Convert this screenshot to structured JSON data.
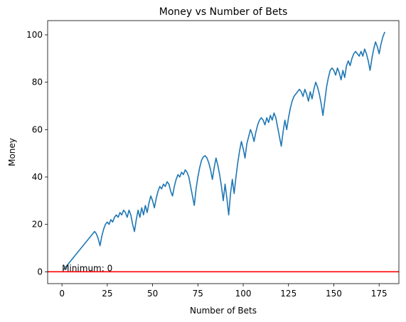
{
  "chart_data": {
    "type": "line",
    "title": "Money vs Number of Bets",
    "xlabel": "Number of Bets",
    "ylabel": "Money",
    "xlim": [
      -7.9,
      185.9
    ],
    "ylim": [
      -5.0,
      106.0
    ],
    "xticks": [
      0,
      25,
      50,
      75,
      100,
      125,
      150,
      175
    ],
    "yticks": [
      0,
      20,
      40,
      60,
      80,
      100
    ],
    "grid": false,
    "legend": "none",
    "series": [
      {
        "color": "#1f77b4",
        "points": [
          [
            1,
            1
          ],
          [
            18,
            17
          ],
          [
            19,
            16
          ],
          [
            20,
            14
          ],
          [
            21,
            11
          ],
          [
            22,
            15
          ],
          [
            23,
            18
          ],
          [
            24,
            20
          ],
          [
            25,
            21
          ],
          [
            26,
            20
          ],
          [
            27,
            22
          ],
          [
            28,
            21
          ],
          [
            29,
            23
          ],
          [
            30,
            24
          ],
          [
            31,
            23
          ],
          [
            32,
            25
          ],
          [
            33,
            24
          ],
          [
            34,
            26
          ],
          [
            35,
            25
          ],
          [
            36,
            23
          ],
          [
            37,
            26
          ],
          [
            38,
            24
          ],
          [
            39,
            20
          ],
          [
            40,
            17
          ],
          [
            41,
            22
          ],
          [
            42,
            26
          ],
          [
            43,
            23
          ],
          [
            44,
            27
          ],
          [
            45,
            24
          ],
          [
            46,
            28
          ],
          [
            47,
            25
          ],
          [
            48,
            29
          ],
          [
            49,
            32
          ],
          [
            50,
            30
          ],
          [
            51,
            27
          ],
          [
            52,
            31
          ],
          [
            53,
            34
          ],
          [
            54,
            36
          ],
          [
            55,
            35
          ],
          [
            56,
            37
          ],
          [
            57,
            36
          ],
          [
            58,
            38
          ],
          [
            59,
            37
          ],
          [
            60,
            34
          ],
          [
            61,
            32
          ],
          [
            62,
            36
          ],
          [
            63,
            39
          ],
          [
            64,
            41
          ],
          [
            65,
            40
          ],
          [
            66,
            42
          ],
          [
            67,
            41
          ],
          [
            68,
            43
          ],
          [
            69,
            42
          ],
          [
            70,
            40
          ],
          [
            71,
            36
          ],
          [
            72,
            32
          ],
          [
            73,
            28
          ],
          [
            74,
            35
          ],
          [
            75,
            40
          ],
          [
            76,
            44
          ],
          [
            77,
            47
          ],
          [
            78,
            48.5
          ],
          [
            79,
            49
          ],
          [
            80,
            48
          ],
          [
            81,
            46
          ],
          [
            82,
            43
          ],
          [
            83,
            39
          ],
          [
            84,
            44
          ],
          [
            85,
            48
          ],
          [
            86,
            45
          ],
          [
            87,
            41
          ],
          [
            88,
            36
          ],
          [
            89,
            30
          ],
          [
            90,
            37
          ],
          [
            91,
            31
          ],
          [
            92,
            24
          ],
          [
            93,
            33
          ],
          [
            94,
            39
          ],
          [
            95,
            33
          ],
          [
            96,
            40
          ],
          [
            97,
            46
          ],
          [
            98,
            51
          ],
          [
            99,
            55
          ],
          [
            100,
            52
          ],
          [
            101,
            48
          ],
          [
            102,
            54
          ],
          [
            103,
            57
          ],
          [
            104,
            60
          ],
          [
            105,
            58
          ],
          [
            106,
            55
          ],
          [
            107,
            59
          ],
          [
            108,
            62
          ],
          [
            109,
            64
          ],
          [
            110,
            65
          ],
          [
            111,
            64
          ],
          [
            112,
            62
          ],
          [
            113,
            65
          ],
          [
            114,
            63
          ],
          [
            115,
            66
          ],
          [
            116,
            64
          ],
          [
            117,
            67
          ],
          [
            118,
            65
          ],
          [
            119,
            61
          ],
          [
            120,
            57
          ],
          [
            121,
            53
          ],
          [
            122,
            59
          ],
          [
            123,
            64
          ],
          [
            124,
            60
          ],
          [
            125,
            65
          ],
          [
            126,
            69
          ],
          [
            127,
            72
          ],
          [
            128,
            74
          ],
          [
            129,
            75
          ],
          [
            130,
            76
          ],
          [
            131,
            77
          ],
          [
            132,
            76
          ],
          [
            133,
            74
          ],
          [
            134,
            77
          ],
          [
            135,
            75
          ],
          [
            136,
            72
          ],
          [
            137,
            76
          ],
          [
            138,
            73
          ],
          [
            139,
            77
          ],
          [
            140,
            80
          ],
          [
            141,
            78
          ],
          [
            142,
            75
          ],
          [
            143,
            71
          ],
          [
            144,
            66
          ],
          [
            145,
            72
          ],
          [
            146,
            78
          ],
          [
            147,
            82
          ],
          [
            148,
            85
          ],
          [
            149,
            86
          ],
          [
            150,
            85
          ],
          [
            151,
            83
          ],
          [
            152,
            86
          ],
          [
            153,
            84
          ],
          [
            154,
            81
          ],
          [
            155,
            85
          ],
          [
            156,
            82
          ],
          [
            157,
            87
          ],
          [
            158,
            89
          ],
          [
            159,
            87
          ],
          [
            160,
            90
          ],
          [
            161,
            92
          ],
          [
            162,
            93
          ],
          [
            163,
            92
          ],
          [
            164,
            91
          ],
          [
            165,
            93
          ],
          [
            166,
            91
          ],
          [
            167,
            94
          ],
          [
            168,
            92
          ],
          [
            169,
            89
          ],
          [
            170,
            85
          ],
          [
            171,
            90
          ],
          [
            172,
            94
          ],
          [
            173,
            97
          ],
          [
            174,
            95
          ],
          [
            175,
            92
          ],
          [
            176,
            96
          ],
          [
            177,
            99
          ],
          [
            178,
            101
          ]
        ]
      }
    ],
    "reference_line": {
      "y": 0,
      "color": "#ff0000"
    },
    "annotations": [
      {
        "text": "Minimum: 0",
        "x": 0,
        "y": 0
      }
    ]
  }
}
